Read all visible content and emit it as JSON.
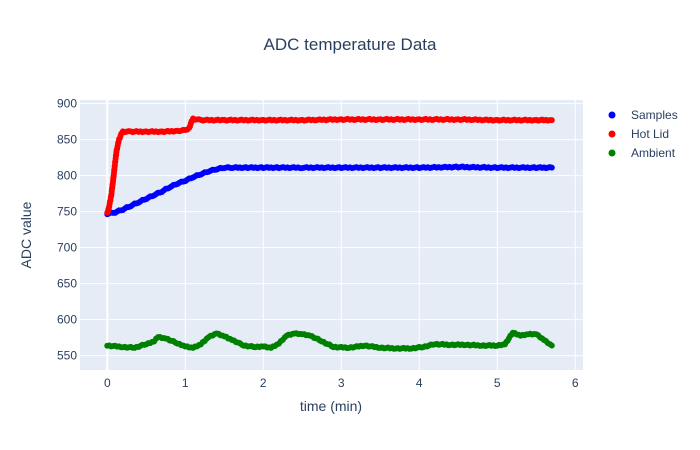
{
  "chart_data": {
    "type": "scatter",
    "title": "ADC temperature Data",
    "xlabel": "time (min)",
    "ylabel": "ADC value",
    "xlim": [
      -0.35,
      6.1
    ],
    "ylim": [
      530,
      905
    ],
    "xticks": [
      0,
      1,
      2,
      3,
      4,
      5,
      6
    ],
    "yticks": [
      550,
      600,
      650,
      700,
      750,
      800,
      850,
      900
    ],
    "grid": true,
    "legend_position": "top-right",
    "background": "#e5ecf6",
    "series": [
      {
        "name": "Samples",
        "color": "#0000ff",
        "points": [
          [
            0.0,
            747
          ],
          [
            0.1,
            749
          ],
          [
            0.2,
            753
          ],
          [
            0.3,
            758
          ],
          [
            0.4,
            763
          ],
          [
            0.5,
            768
          ],
          [
            0.6,
            773
          ],
          [
            0.7,
            778
          ],
          [
            0.8,
            784
          ],
          [
            0.9,
            789
          ],
          [
            1.0,
            793
          ],
          [
            1.1,
            798
          ],
          [
            1.2,
            802
          ],
          [
            1.3,
            806
          ],
          [
            1.4,
            809
          ],
          [
            1.5,
            811
          ],
          [
            1.6,
            811
          ],
          [
            1.8,
            811
          ],
          [
            2.0,
            811
          ],
          [
            2.2,
            811
          ],
          [
            2.5,
            811
          ],
          [
            3.0,
            811
          ],
          [
            3.5,
            811
          ],
          [
            4.0,
            811
          ],
          [
            4.5,
            812
          ],
          [
            5.0,
            811
          ],
          [
            5.5,
            811
          ],
          [
            5.7,
            811
          ]
        ]
      },
      {
        "name": "Hot Lid",
        "color": "#ff0000",
        "points": [
          [
            0.0,
            748
          ],
          [
            0.02,
            755
          ],
          [
            0.05,
            772
          ],
          [
            0.08,
            798
          ],
          [
            0.1,
            818
          ],
          [
            0.12,
            835
          ],
          [
            0.15,
            850
          ],
          [
            0.18,
            858
          ],
          [
            0.2,
            861
          ],
          [
            0.3,
            861
          ],
          [
            0.5,
            861
          ],
          [
            0.7,
            861
          ],
          [
            0.9,
            862
          ],
          [
            1.0,
            863
          ],
          [
            1.05,
            866
          ],
          [
            1.08,
            875
          ],
          [
            1.1,
            879
          ],
          [
            1.2,
            877
          ],
          [
            1.5,
            877
          ],
          [
            2.0,
            877
          ],
          [
            2.5,
            877
          ],
          [
            3.0,
            878
          ],
          [
            3.5,
            878
          ],
          [
            4.0,
            878
          ],
          [
            4.5,
            878
          ],
          [
            5.0,
            877
          ],
          [
            5.5,
            877
          ],
          [
            5.7,
            877
          ]
        ]
      },
      {
        "name": "Ambient",
        "color": "#008000",
        "points": [
          [
            0.0,
            564
          ],
          [
            0.2,
            562
          ],
          [
            0.35,
            561
          ],
          [
            0.5,
            566
          ],
          [
            0.6,
            570
          ],
          [
            0.65,
            576
          ],
          [
            0.75,
            574
          ],
          [
            0.9,
            567
          ],
          [
            1.0,
            563
          ],
          [
            1.1,
            561
          ],
          [
            1.2,
            566
          ],
          [
            1.3,
            576
          ],
          [
            1.4,
            581
          ],
          [
            1.5,
            577
          ],
          [
            1.6,
            572
          ],
          [
            1.75,
            564
          ],
          [
            1.9,
            562
          ],
          [
            2.0,
            563
          ],
          [
            2.1,
            561
          ],
          [
            2.2,
            567
          ],
          [
            2.3,
            578
          ],
          [
            2.4,
            581
          ],
          [
            2.5,
            580
          ],
          [
            2.6,
            578
          ],
          [
            2.75,
            570
          ],
          [
            2.9,
            562
          ],
          [
            3.1,
            561
          ],
          [
            3.3,
            564
          ],
          [
            3.5,
            561
          ],
          [
            3.7,
            560
          ],
          [
            3.9,
            560
          ],
          [
            4.05,
            562
          ],
          [
            4.2,
            566
          ],
          [
            4.4,
            565
          ],
          [
            4.6,
            565
          ],
          [
            4.8,
            564
          ],
          [
            5.0,
            564
          ],
          [
            5.1,
            566
          ],
          [
            5.2,
            582
          ],
          [
            5.3,
            578
          ],
          [
            5.4,
            580
          ],
          [
            5.5,
            580
          ],
          [
            5.6,
            572
          ],
          [
            5.7,
            564
          ]
        ]
      }
    ]
  }
}
